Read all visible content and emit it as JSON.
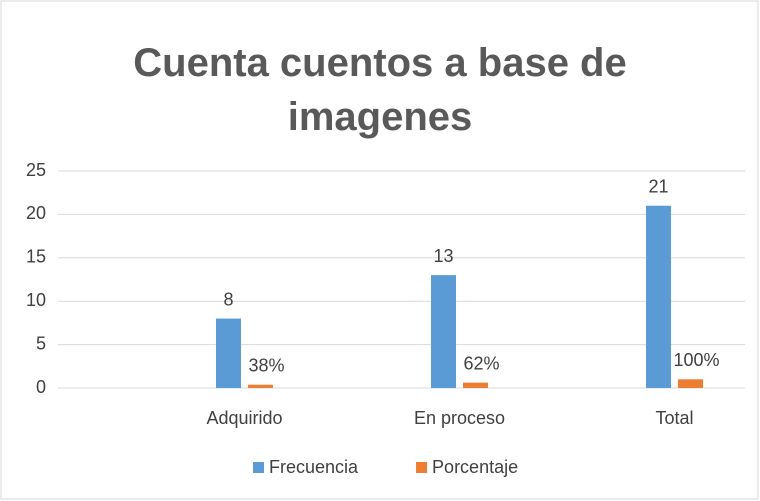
{
  "chart_data": {
    "type": "bar",
    "title": "Cuenta cuentos a base de imagenes",
    "categories": [
      "Adquirido",
      "En proceso",
      "Total"
    ],
    "series": [
      {
        "name": "Frecuencia",
        "color": "#5b9bd5",
        "values": [
          8,
          13,
          21
        ]
      },
      {
        "name": "Porcentaje",
        "color": "#ed7d31",
        "values": [
          0.38,
          0.62,
          1
        ],
        "value_labels": [
          "38%",
          "62%",
          "100%"
        ]
      }
    ],
    "ylim": [
      0,
      25
    ],
    "yticks": [
      0,
      5,
      10,
      15,
      20,
      25
    ],
    "grid": true,
    "legend": "bottom"
  }
}
